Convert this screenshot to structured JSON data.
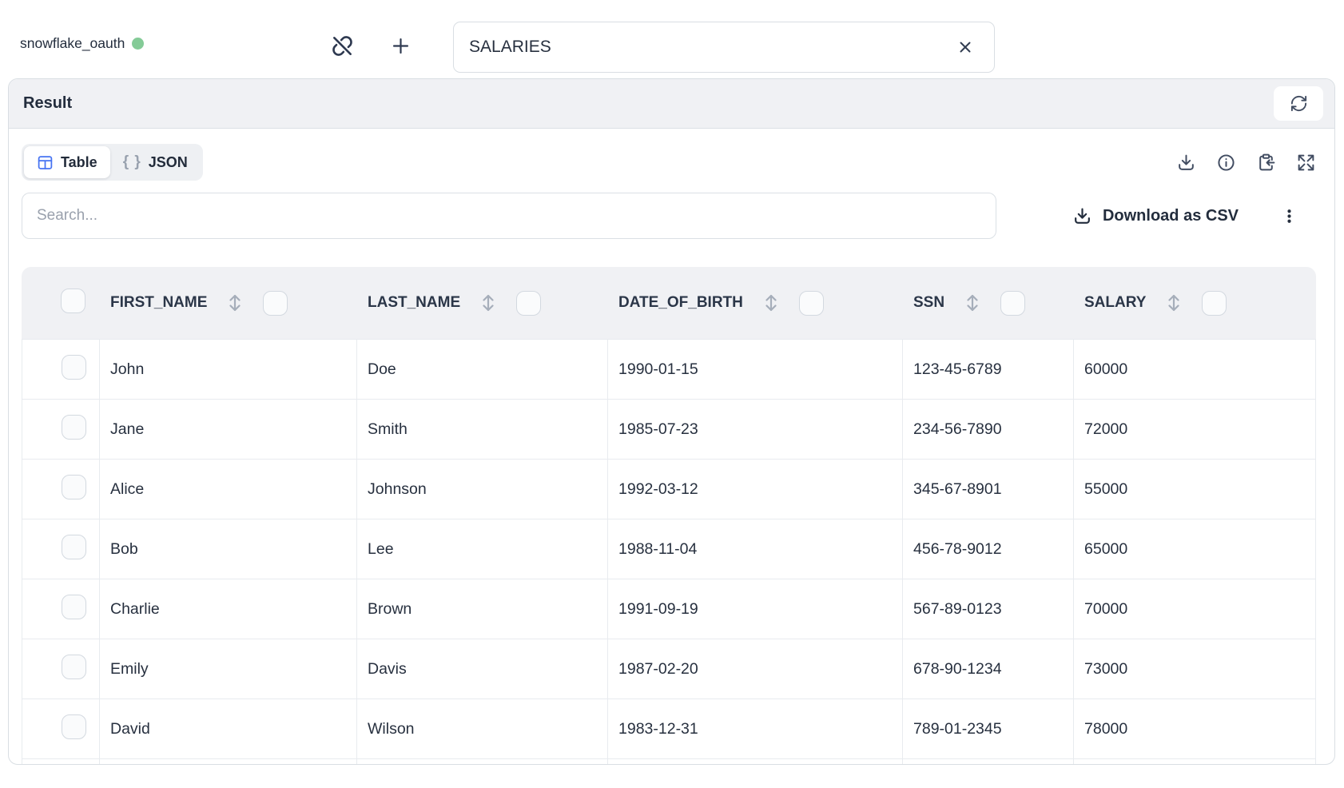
{
  "topbar": {
    "connection_name": "snowflake_oauth",
    "connection_status": "connected",
    "query_value": "SALARIES"
  },
  "result_panel": {
    "title": "Result"
  },
  "view_tabs": {
    "table_label": "Table",
    "json_label": "JSON",
    "active_tab": "Table"
  },
  "search": {
    "placeholder": "Search..."
  },
  "toolbar": {
    "download_csv_label": "Download as CSV"
  },
  "table": {
    "columns": [
      "FIRST_NAME",
      "LAST_NAME",
      "DATE_OF_BIRTH",
      "SSN",
      "SALARY"
    ],
    "rows": [
      [
        "John",
        "Doe",
        "1990-01-15",
        "123-45-6789",
        "60000"
      ],
      [
        "Jane",
        "Smith",
        "1985-07-23",
        "234-56-7890",
        "72000"
      ],
      [
        "Alice",
        "Johnson",
        "1992-03-12",
        "345-67-8901",
        "55000"
      ],
      [
        "Bob",
        "Lee",
        "1988-11-04",
        "456-78-9012",
        "65000"
      ],
      [
        "Charlie",
        "Brown",
        "1991-09-19",
        "567-89-0123",
        "70000"
      ],
      [
        "Emily",
        "Davis",
        "1987-02-20",
        "678-90-1234",
        "73000"
      ],
      [
        "David",
        "Wilson",
        "1983-12-31",
        "789-01-2345",
        "78000"
      ]
    ]
  },
  "icons": {
    "link_off_icon": "broken-chain-link-with-slash",
    "add_icon": "+",
    "clear_icon": "x",
    "refresh_icon": "circular-arrows",
    "table_icon": "grid",
    "json_braces": "{ }",
    "download_icon": "arrow-down-into-tray",
    "info_icon": "i-in-circle",
    "copy_result_icon": "clipboard-with-left-arrow",
    "expand_icon": "four-corner-arrows",
    "sort_icon": "up-down-arrow",
    "menu_icon": "vertical-dots",
    "checkbox_icon": "rounded-square"
  },
  "colors": {
    "accent_blue": "#4673f2",
    "status_green": "#84cb97",
    "header_gray": "#f0f1f4",
    "border_gray": "#d9dee3",
    "row_line_gray": "#e8ebef",
    "text_dark": "#232d3d",
    "muted_gray": "#98a1ae"
  }
}
